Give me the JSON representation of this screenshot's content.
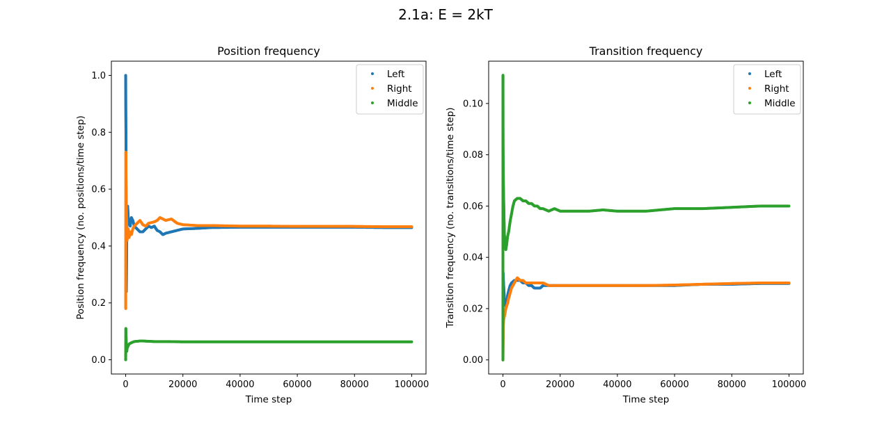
{
  "figure": {
    "title": "2.1a: E = 2kT"
  },
  "colors": {
    "Left": "#1f77b4",
    "Right": "#ff7f0e",
    "Middle": "#2ca02c"
  },
  "chart_data": [
    {
      "type": "scatter",
      "title": "Position frequency",
      "xlabel": "Time step",
      "ylabel": "Position frequency (no. positions/time step)",
      "xlim": [
        -5000,
        105000
      ],
      "ylim": [
        -0.05,
        1.05
      ],
      "xticks": [
        0,
        20000,
        40000,
        60000,
        80000,
        100000
      ],
      "xtick_labels": [
        "0",
        "20000",
        "40000",
        "60000",
        "80000",
        "100000"
      ],
      "yticks": [
        0.0,
        0.2,
        0.4,
        0.6,
        0.8,
        1.0
      ],
      "ytick_labels": [
        "0.0",
        "0.2",
        "0.4",
        "0.6",
        "0.8",
        "1.0"
      ],
      "legend": "top-right",
      "grid": false,
      "series": [
        {
          "name": "Left",
          "points": [
            [
              0,
              1.0
            ],
            [
              10,
              1.0
            ],
            [
              40,
              0.889
            ],
            [
              90,
              0.8
            ],
            [
              150,
              0.55
            ],
            [
              200,
              0.25
            ],
            [
              250,
              0.24
            ],
            [
              300,
              0.32
            ],
            [
              400,
              0.44
            ],
            [
              500,
              0.52
            ],
            [
              700,
              0.54
            ],
            [
              900,
              0.5
            ],
            [
              1200,
              0.48
            ],
            [
              1600,
              0.47
            ],
            [
              2000,
              0.5
            ],
            [
              2500,
              0.49
            ],
            [
              3000,
              0.47
            ],
            [
              4000,
              0.46
            ],
            [
              5000,
              0.45
            ],
            [
              6000,
              0.45
            ],
            [
              7000,
              0.46
            ],
            [
              8000,
              0.47
            ],
            [
              9000,
              0.465
            ],
            [
              10000,
              0.47
            ],
            [
              11000,
              0.455
            ],
            [
              12000,
              0.45
            ],
            [
              13000,
              0.44
            ],
            [
              14000,
              0.445
            ],
            [
              16000,
              0.45
            ],
            [
              18000,
              0.455
            ],
            [
              20000,
              0.46
            ],
            [
              25000,
              0.462
            ],
            [
              30000,
              0.465
            ],
            [
              40000,
              0.466
            ],
            [
              50000,
              0.466
            ],
            [
              60000,
              0.466
            ],
            [
              70000,
              0.466
            ],
            [
              80000,
              0.466
            ],
            [
              90000,
              0.465
            ],
            [
              100000,
              0.465
            ]
          ]
        },
        {
          "name": "Right",
          "points": [
            [
              20,
              0.18
            ],
            [
              60,
              0.73
            ],
            [
              100,
              0.7
            ],
            [
              150,
              0.62
            ],
            [
              200,
              0.57
            ],
            [
              300,
              0.5
            ],
            [
              400,
              0.44
            ],
            [
              500,
              0.42
            ],
            [
              700,
              0.44
            ],
            [
              900,
              0.46
            ],
            [
              1200,
              0.43
            ],
            [
              1600,
              0.45
            ],
            [
              2000,
              0.44
            ],
            [
              2500,
              0.46
            ],
            [
              3000,
              0.47
            ],
            [
              4000,
              0.48
            ],
            [
              5000,
              0.49
            ],
            [
              6000,
              0.475
            ],
            [
              7000,
              0.47
            ],
            [
              8000,
              0.48
            ],
            [
              10000,
              0.485
            ],
            [
              11000,
              0.49
            ],
            [
              12000,
              0.5
            ],
            [
              13000,
              0.495
            ],
            [
              14000,
              0.49
            ],
            [
              16000,
              0.495
            ],
            [
              18000,
              0.48
            ],
            [
              20000,
              0.475
            ],
            [
              25000,
              0.472
            ],
            [
              30000,
              0.472
            ],
            [
              40000,
              0.47
            ],
            [
              50000,
              0.47
            ],
            [
              60000,
              0.469
            ],
            [
              70000,
              0.469
            ],
            [
              80000,
              0.469
            ],
            [
              90000,
              0.468
            ],
            [
              100000,
              0.468
            ]
          ]
        },
        {
          "name": "Middle",
          "points": [
            [
              0,
              0.0
            ],
            [
              10,
              0.0
            ],
            [
              60,
              0.11
            ],
            [
              100,
              0.095
            ],
            [
              150,
              0.08
            ],
            [
              200,
              0.065
            ],
            [
              300,
              0.035
            ],
            [
              400,
              0.03
            ],
            [
              500,
              0.04
            ],
            [
              700,
              0.045
            ],
            [
              900,
              0.05
            ],
            [
              1200,
              0.055
            ],
            [
              1600,
              0.058
            ],
            [
              2000,
              0.06
            ],
            [
              2500,
              0.062
            ],
            [
              3000,
              0.064
            ],
            [
              4000,
              0.065
            ],
            [
              5000,
              0.066
            ],
            [
              6000,
              0.066
            ],
            [
              8000,
              0.065
            ],
            [
              10000,
              0.064
            ],
            [
              15000,
              0.064
            ],
            [
              20000,
              0.063
            ],
            [
              30000,
              0.063
            ],
            [
              40000,
              0.063
            ],
            [
              50000,
              0.063
            ],
            [
              60000,
              0.063
            ],
            [
              70000,
              0.063
            ],
            [
              80000,
              0.063
            ],
            [
              90000,
              0.063
            ],
            [
              100000,
              0.063
            ]
          ]
        }
      ]
    },
    {
      "type": "scatter",
      "title": "Transition frequency",
      "xlabel": "Time step",
      "ylabel": "Transition frequency (no. transitions/time step)",
      "xlim": [
        -5000,
        105000
      ],
      "ylim": [
        -0.0055,
        0.1165
      ],
      "xticks": [
        0,
        20000,
        40000,
        60000,
        80000,
        100000
      ],
      "xtick_labels": [
        "0",
        "20000",
        "40000",
        "60000",
        "80000",
        "100000"
      ],
      "yticks": [
        0.0,
        0.02,
        0.04,
        0.06,
        0.08,
        0.1
      ],
      "ytick_labels": [
        "0.00",
        "0.02",
        "0.04",
        "0.06",
        "0.08",
        "0.10"
      ],
      "legend": "top-right",
      "grid": false,
      "series": [
        {
          "name": "Left",
          "points": [
            [
              0,
              0.0
            ],
            [
              50,
              0.034
            ],
            [
              100,
              0.033
            ],
            [
              200,
              0.03
            ],
            [
              300,
              0.028
            ],
            [
              500,
              0.024
            ],
            [
              700,
              0.022
            ],
            [
              1000,
              0.021
            ],
            [
              1300,
              0.022
            ],
            [
              1600,
              0.025
            ],
            [
              2000,
              0.027
            ],
            [
              2500,
              0.029
            ],
            [
              3000,
              0.03
            ],
            [
              4000,
              0.031
            ],
            [
              5000,
              0.031
            ],
            [
              6000,
              0.031
            ],
            [
              7000,
              0.03
            ],
            [
              8000,
              0.03
            ],
            [
              9000,
              0.029
            ],
            [
              10000,
              0.029
            ],
            [
              11000,
              0.028
            ],
            [
              12000,
              0.028
            ],
            [
              13000,
              0.028
            ],
            [
              14000,
              0.029
            ],
            [
              16000,
              0.029
            ],
            [
              18000,
              0.029
            ],
            [
              20000,
              0.029
            ],
            [
              25000,
              0.029
            ],
            [
              30000,
              0.029
            ],
            [
              40000,
              0.029
            ],
            [
              50000,
              0.029
            ],
            [
              60000,
              0.029
            ],
            [
              70000,
              0.0295
            ],
            [
              80000,
              0.0295
            ],
            [
              90000,
              0.0298
            ],
            [
              100000,
              0.0298
            ]
          ]
        },
        {
          "name": "Right",
          "points": [
            [
              0,
              0.0
            ],
            [
              80,
              0.011
            ],
            [
              120,
              0.013
            ],
            [
              200,
              0.015
            ],
            [
              300,
              0.016
            ],
            [
              500,
              0.017
            ],
            [
              700,
              0.018
            ],
            [
              1000,
              0.02
            ],
            [
              1300,
              0.021
            ],
            [
              1600,
              0.022
            ],
            [
              2000,
              0.024
            ],
            [
              2500,
              0.026
            ],
            [
              3000,
              0.028
            ],
            [
              4000,
              0.03
            ],
            [
              5000,
              0.032
            ],
            [
              6000,
              0.031
            ],
            [
              7000,
              0.031
            ],
            [
              8000,
              0.03
            ],
            [
              9000,
              0.03
            ],
            [
              10000,
              0.03
            ],
            [
              11000,
              0.03
            ],
            [
              12000,
              0.03
            ],
            [
              13000,
              0.03
            ],
            [
              14000,
              0.03
            ],
            [
              16000,
              0.029
            ],
            [
              18000,
              0.029
            ],
            [
              20000,
              0.029
            ],
            [
              25000,
              0.029
            ],
            [
              30000,
              0.029
            ],
            [
              40000,
              0.029
            ],
            [
              50000,
              0.029
            ],
            [
              60000,
              0.0292
            ],
            [
              70000,
              0.0295
            ],
            [
              80000,
              0.0298
            ],
            [
              90000,
              0.03
            ],
            [
              100000,
              0.03
            ]
          ]
        },
        {
          "name": "Middle",
          "points": [
            [
              0,
              0.0
            ],
            [
              10,
              0.111
            ],
            [
              20,
              0.1
            ],
            [
              30,
              0.091
            ],
            [
              50,
              0.083
            ],
            [
              70,
              0.08
            ],
            [
              100,
              0.075
            ],
            [
              150,
              0.07
            ],
            [
              200,
              0.066
            ],
            [
              300,
              0.06
            ],
            [
              400,
              0.054
            ],
            [
              500,
              0.049
            ],
            [
              700,
              0.046
            ],
            [
              1000,
              0.043
            ],
            [
              1300,
              0.045
            ],
            [
              1600,
              0.048
            ],
            [
              2000,
              0.05
            ],
            [
              2500,
              0.054
            ],
            [
              3000,
              0.057
            ],
            [
              3500,
              0.06
            ],
            [
              4000,
              0.062
            ],
            [
              5000,
              0.063
            ],
            [
              6000,
              0.063
            ],
            [
              7000,
              0.062
            ],
            [
              8000,
              0.062
            ],
            [
              9000,
              0.061
            ],
            [
              10000,
              0.061
            ],
            [
              11000,
              0.06
            ],
            [
              12000,
              0.06
            ],
            [
              13000,
              0.059
            ],
            [
              14000,
              0.059
            ],
            [
              16000,
              0.058
            ],
            [
              18000,
              0.059
            ],
            [
              20000,
              0.058
            ],
            [
              25000,
              0.058
            ],
            [
              30000,
              0.058
            ],
            [
              35000,
              0.0585
            ],
            [
              40000,
              0.058
            ],
            [
              50000,
              0.058
            ],
            [
              60000,
              0.059
            ],
            [
              70000,
              0.059
            ],
            [
              80000,
              0.0595
            ],
            [
              90000,
              0.06
            ],
            [
              100000,
              0.06
            ]
          ]
        }
      ]
    }
  ]
}
